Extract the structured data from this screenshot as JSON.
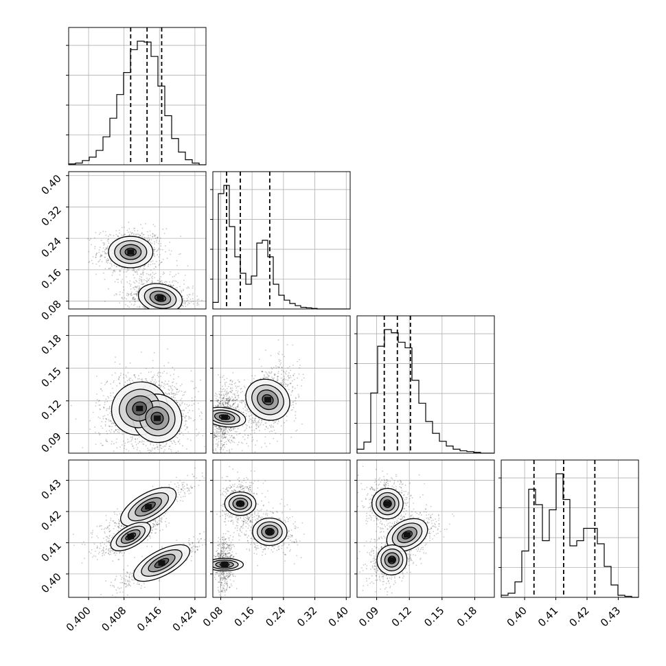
{
  "chart_data": {
    "type": "corner",
    "title": "",
    "parameters": [
      {
        "name": "",
        "range": [
          0.3955,
          0.4265
        ],
        "ticks": [
          0.4,
          0.408,
          0.416,
          0.424
        ],
        "tick_labels": [
          "0.400",
          "0.408",
          "0.416",
          "0.424"
        ],
        "quantiles": [
          0.4095,
          0.4132,
          0.4165
        ],
        "x_tick_labels_shown_on_bottom": true
      },
      {
        "name": "",
        "range": [
          0.06,
          0.41
        ],
        "ticks": [
          0.08,
          0.16,
          0.24,
          0.32,
          0.4
        ],
        "tick_labels": [
          "0.08",
          "0.16",
          "0.24",
          "0.32",
          "0.40"
        ],
        "quantiles": [
          0.095,
          0.13,
          0.205
        ]
      },
      {
        "name": "",
        "range": [
          0.072,
          0.198
        ],
        "ticks": [
          0.09,
          0.12,
          0.15,
          0.18
        ],
        "tick_labels": [
          "0.09",
          "0.12",
          "0.15",
          "0.18"
        ],
        "quantiles": [
          0.097,
          0.109,
          0.121
        ]
      },
      {
        "name": "",
        "range": [
          0.3925,
          0.4365
        ],
        "ticks": [
          0.4,
          0.41,
          0.42,
          0.43
        ],
        "tick_labels": [
          "0.40",
          "0.41",
          "0.42",
          "0.43"
        ],
        "quantiles": [
          0.403,
          0.4125,
          0.4225
        ]
      }
    ],
    "histograms": [
      {
        "param": 0,
        "bin_edges_start": 0.3955,
        "bin_count": 20,
        "counts": [
          1,
          2,
          5,
          9,
          17,
          33,
          55,
          83,
          109,
          136,
          146,
          145,
          128,
          93,
          58,
          31,
          15,
          6,
          2,
          0
        ]
      },
      {
        "param": 1,
        "bin_edges_start": 0.06,
        "bin_count": 25,
        "counts": [
          12,
          210,
          225,
          150,
          95,
          65,
          45,
          60,
          120,
          125,
          95,
          45,
          25,
          16,
          10,
          6,
          3,
          2,
          1,
          0,
          0,
          0,
          0,
          0,
          0
        ]
      },
      {
        "param": 2,
        "bin_edges_start": 0.072,
        "bin_count": 20,
        "counts": [
          5,
          14,
          76,
          135,
          156,
          152,
          140,
          133,
          92,
          63,
          40,
          25,
          15,
          9,
          5,
          3,
          2,
          1,
          0,
          0
        ]
      },
      {
        "param": 3,
        "bin_edges_start": 0.3925,
        "bin_count": 20,
        "counts": [
          2,
          4,
          15,
          45,
          105,
          90,
          55,
          85,
          120,
          95,
          50,
          55,
          67,
          67,
          52,
          30,
          12,
          2,
          1,
          0
        ]
      }
    ],
    "pairs": [
      {
        "x": 0,
        "y": 1,
        "modes": [
          {
            "x": 0.4095,
            "y": 0.205,
            "sx": 0.0025,
            "sy": 0.02,
            "rho": 0.0,
            "w": 0.45
          },
          {
            "x": 0.4162,
            "y": 0.088,
            "sx": 0.0025,
            "sy": 0.018,
            "rho": -0.2,
            "w": 0.55
          }
        ]
      },
      {
        "x": 0,
        "y": 2,
        "modes": [
          {
            "x": 0.4115,
            "y": 0.113,
            "sx": 0.0032,
            "sy": 0.012,
            "rho": 0.1,
            "w": 0.5
          },
          {
            "x": 0.4155,
            "y": 0.104,
            "sx": 0.0028,
            "sy": 0.011,
            "rho": -0.1,
            "w": 0.5
          }
        ]
      },
      {
        "x": 1,
        "y": 2,
        "modes": [
          {
            "x": 0.09,
            "y": 0.105,
            "sx": 0.012,
            "sy": 0.01,
            "rho": 0.3,
            "w": 0.5
          },
          {
            "x": 0.2,
            "y": 0.121,
            "sx": 0.025,
            "sy": 0.011,
            "rho": 0.4,
            "w": 0.5
          }
        ]
      },
      {
        "x": 0,
        "y": 3,
        "modes": [
          {
            "x": 0.4135,
            "y": 0.4215,
            "sx": 0.0035,
            "sy": 0.003,
            "rho": 0.9,
            "w": 0.34
          },
          {
            "x": 0.4095,
            "y": 0.412,
            "sx": 0.0025,
            "sy": 0.0022,
            "rho": 0.85,
            "w": 0.33
          },
          {
            "x": 0.4165,
            "y": 0.4035,
            "sx": 0.0035,
            "sy": 0.0028,
            "rho": 0.9,
            "w": 0.33
          }
        ]
      },
      {
        "x": 1,
        "y": 3,
        "modes": [
          {
            "x": 0.13,
            "y": 0.4225,
            "sx": 0.015,
            "sy": 0.0025,
            "rho": 0.0,
            "w": 0.34
          },
          {
            "x": 0.205,
            "y": 0.4135,
            "sx": 0.022,
            "sy": 0.0022,
            "rho": 0.0,
            "w": 0.33
          },
          {
            "x": 0.09,
            "y": 0.403,
            "sx": 0.008,
            "sy": 0.003,
            "rho": 0.0,
            "w": 0.33
          }
        ]
      },
      {
        "x": 2,
        "y": 3,
        "modes": [
          {
            "x": 0.1,
            "y": 0.4225,
            "sx": 0.007,
            "sy": 0.0025,
            "rho": 0.0,
            "w": 0.34
          },
          {
            "x": 0.118,
            "y": 0.4125,
            "sx": 0.01,
            "sy": 0.0025,
            "rho": 0.5,
            "w": 0.33
          },
          {
            "x": 0.104,
            "y": 0.4045,
            "sx": 0.007,
            "sy": 0.0025,
            "rho": 0.4,
            "w": 0.33
          }
        ]
      }
    ],
    "grid": true,
    "contour_levels": 4
  }
}
